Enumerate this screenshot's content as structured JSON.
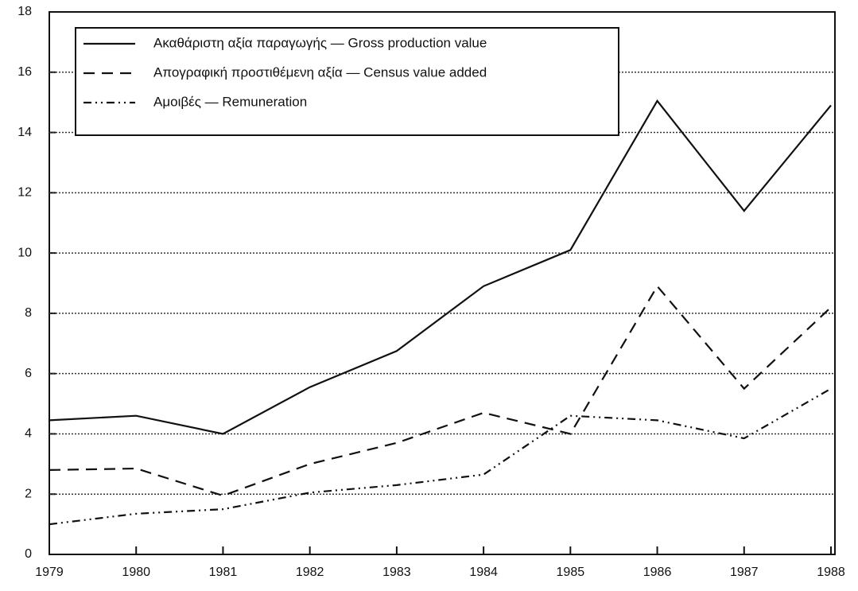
{
  "chart_data": {
    "type": "line",
    "x": [
      1979,
      1980,
      1981,
      1982,
      1983,
      1984,
      1985,
      1986,
      1987,
      1988
    ],
    "xlim": [
      1979,
      1988
    ],
    "xticks": [
      1979,
      1980,
      1981,
      1982,
      1983,
      1984,
      1985,
      1986,
      1987,
      1988
    ],
    "ylim": [
      0,
      18
    ],
    "yticks": [
      0,
      2,
      4,
      6,
      8,
      10,
      12,
      14,
      16,
      18
    ],
    "grid": true,
    "legend": "upper left",
    "series": [
      {
        "name": "Ακαθάριστη αξία παραγωγής — Gross production value",
        "color": "#111111",
        "dash": "solid",
        "values": [
          4.45,
          4.6,
          4.0,
          5.55,
          6.75,
          8.9,
          10.1,
          15.05,
          11.4,
          14.9
        ]
      },
      {
        "name": "Απογραφική προστιθέμενη αξία — Census value added",
        "color": "#111111",
        "dash": "dashed",
        "values": [
          2.8,
          2.85,
          1.95,
          3.0,
          3.7,
          4.7,
          4.0,
          8.9,
          5.5,
          8.2
        ]
      },
      {
        "name": "Αμοιβές — Remuneration",
        "color": "#111111",
        "dash": "dashdot",
        "values": [
          1.0,
          1.35,
          1.5,
          2.05,
          2.3,
          2.65,
          4.6,
          4.45,
          3.85,
          5.5
        ]
      }
    ]
  }
}
